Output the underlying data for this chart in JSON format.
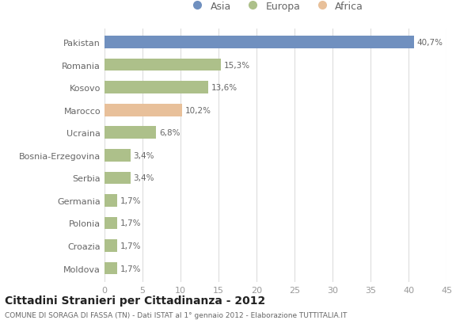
{
  "categories": [
    "Pakistan",
    "Romania",
    "Kosovo",
    "Marocco",
    "Ucraina",
    "Bosnia-Erzegovina",
    "Serbia",
    "Germania",
    "Polonia",
    "Croazia",
    "Moldova"
  ],
  "values": [
    40.7,
    15.3,
    13.6,
    10.2,
    6.8,
    3.4,
    3.4,
    1.7,
    1.7,
    1.7,
    1.7
  ],
  "labels": [
    "40,7%",
    "15,3%",
    "13,6%",
    "10,2%",
    "6,8%",
    "3,4%",
    "3,4%",
    "1,7%",
    "1,7%",
    "1,7%",
    "1,7%"
  ],
  "colors": [
    "#7090bf",
    "#adc08a",
    "#adc08a",
    "#e8c09a",
    "#adc08a",
    "#adc08a",
    "#adc08a",
    "#adc08a",
    "#adc08a",
    "#adc08a",
    "#adc08a"
  ],
  "legend_labels": [
    "Asia",
    "Europa",
    "Africa"
  ],
  "legend_colors": [
    "#7090bf",
    "#adc08a",
    "#e8c09a"
  ],
  "title": "Cittadini Stranieri per Cittadinanza - 2012",
  "subtitle": "COMUNE DI SORAGA DI FASSA (TN) - Dati ISTAT al 1° gennaio 2012 - Elaborazione TUTTITALIA.IT",
  "xlim": [
    0,
    45
  ],
  "xticks": [
    0,
    5,
    10,
    15,
    20,
    25,
    30,
    35,
    40,
    45
  ],
  "background_color": "#ffffff",
  "grid_color": "#dddddd",
  "bar_height": 0.55
}
